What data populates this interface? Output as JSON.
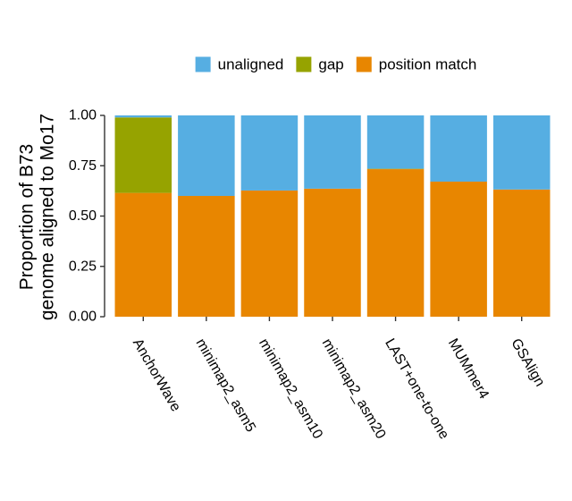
{
  "chart_data": {
    "type": "bar",
    "stacked": true,
    "categories": [
      "AnchorWave",
      "minimap2_asm5",
      "minimap2_asm10",
      "minimap2_asm20",
      "LAST+one-to-one",
      "MUMmer4",
      "GSAlign"
    ],
    "series": [
      {
        "name": "position match",
        "color": "#E88600",
        "values": [
          0.615,
          0.6,
          0.627,
          0.636,
          0.733,
          0.671,
          0.632
        ]
      },
      {
        "name": "gap",
        "color": "#96A300",
        "values": [
          0.375,
          0.0,
          0.0,
          0.0,
          0.002,
          0.0,
          0.0
        ]
      },
      {
        "name": "unaligned",
        "color": "#56AEE2",
        "values": [
          0.01,
          0.4,
          0.373,
          0.364,
          0.265,
          0.329,
          0.368
        ]
      }
    ],
    "legend": {
      "position": "top",
      "entries": [
        {
          "label": "unaligned",
          "color": "#56AEE2"
        },
        {
          "label": "gap",
          "color": "#96A300"
        },
        {
          "label": "position match",
          "color": "#E88600"
        }
      ]
    },
    "ylabel": [
      "Proportion of B73",
      "genome aligned to Mo17"
    ],
    "xlabel": "",
    "ylim": [
      0,
      1
    ],
    "yticks": [
      0,
      0.25,
      0.5,
      0.75,
      1.0
    ],
    "ytick_labels": [
      "0.00",
      "0.25",
      "0.50",
      "0.75",
      "1.00"
    ],
    "grid": false
  }
}
